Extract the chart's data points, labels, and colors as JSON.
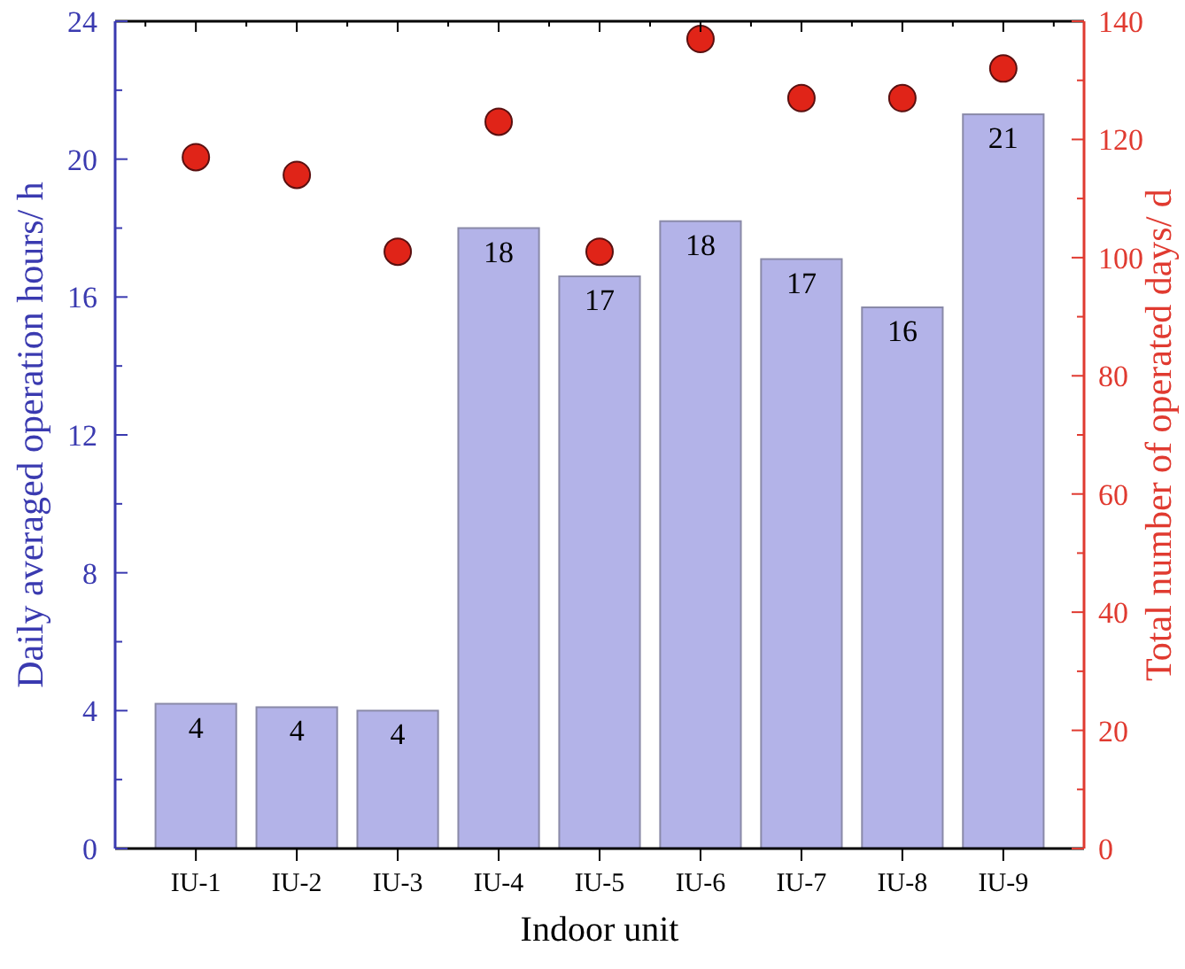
{
  "chart_data": {
    "type": "bar",
    "xlabel": "Indoor unit",
    "ylabel": "Daily averaged operation hours/ h",
    "y2label": "Total number of operated days/ d",
    "categories": [
      "IU-1",
      "IU-2",
      "IU-3",
      "IU-4",
      "IU-5",
      "IU-6",
      "IU-7",
      "IU-8",
      "IU-9"
    ],
    "series": [
      {
        "color": "#b3b3e8",
        "values": [
          4.2,
          4.1,
          4.0,
          18.0,
          16.6,
          18.2,
          17.1,
          15.7,
          21.3
        ],
        "value_labels": [
          "4",
          "4",
          "4",
          "18",
          "17",
          "18",
          "17",
          "16",
          "21"
        ]
      },
      {
        "type": "scatter",
        "axis": "y2",
        "color": "#e02418",
        "values": [
          117,
          114,
          101,
          123,
          101,
          137,
          127,
          127,
          132
        ]
      }
    ],
    "ylim": [
      0,
      24
    ],
    "yticks": [
      0,
      4,
      8,
      12,
      16,
      20,
      24
    ],
    "y2lim": [
      0,
      140
    ],
    "y2ticks": [
      0,
      20,
      40,
      60,
      80,
      100,
      120,
      140
    ],
    "marker": "circle",
    "grid": false
  }
}
